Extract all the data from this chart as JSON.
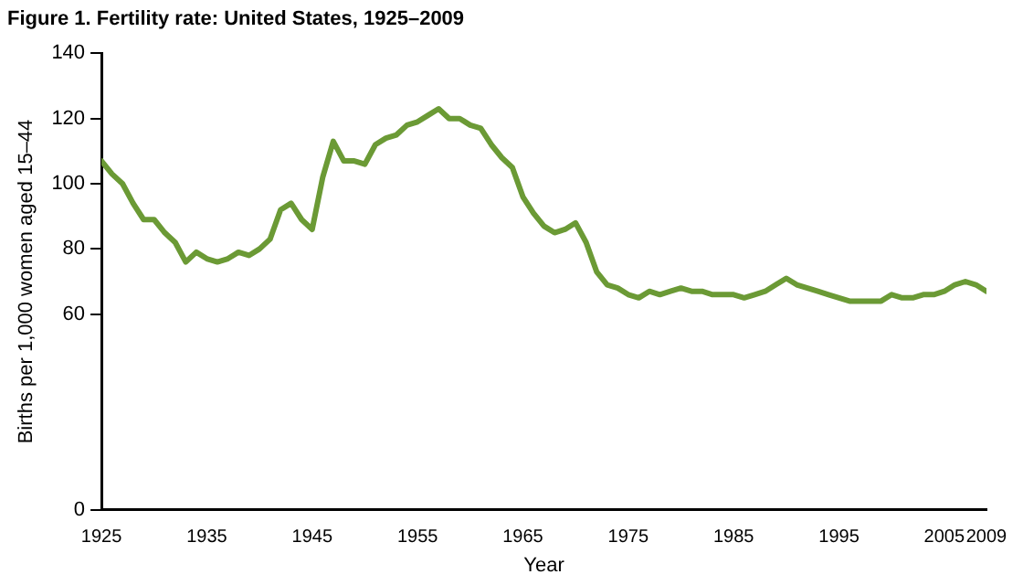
{
  "chart_data": {
    "type": "line",
    "title": "Figure 1. Fertility rate: United States, 1925–2009",
    "xlabel": "Year",
    "ylabel": "Births per 1,000 women aged 15–44",
    "x": [
      1925,
      1926,
      1927,
      1928,
      1929,
      1930,
      1931,
      1932,
      1933,
      1934,
      1935,
      1936,
      1937,
      1938,
      1939,
      1940,
      1941,
      1942,
      1943,
      1944,
      1945,
      1946,
      1947,
      1948,
      1949,
      1950,
      1951,
      1952,
      1953,
      1954,
      1955,
      1956,
      1957,
      1958,
      1959,
      1960,
      1961,
      1962,
      1963,
      1964,
      1965,
      1966,
      1967,
      1968,
      1969,
      1970,
      1971,
      1972,
      1973,
      1974,
      1975,
      1976,
      1977,
      1978,
      1979,
      1980,
      1981,
      1982,
      1983,
      1984,
      1985,
      1986,
      1987,
      1988,
      1989,
      1990,
      1991,
      1992,
      1993,
      1994,
      1995,
      1996,
      1997,
      1998,
      1999,
      2000,
      2001,
      2002,
      2003,
      2004,
      2005,
      2006,
      2007,
      2008,
      2009
    ],
    "series": [
      {
        "color": "#6b9a35",
        "values": [
          107,
          103,
          100,
          94,
          89,
          89,
          85,
          82,
          76,
          79,
          77,
          76,
          77,
          79,
          78,
          80,
          83,
          92,
          94,
          89,
          86,
          102,
          113,
          107,
          107,
          106,
          112,
          114,
          115,
          118,
          119,
          121,
          123,
          120,
          120,
          118,
          117,
          112,
          108,
          105,
          96,
          91,
          87,
          85,
          86,
          88,
          82,
          73,
          69,
          68,
          66,
          65,
          67,
          66,
          67,
          68,
          67,
          67,
          66,
          66,
          66,
          65,
          66,
          67,
          69,
          71,
          69,
          68,
          67,
          66,
          65,
          64,
          64,
          64,
          64,
          66,
          65,
          65,
          66,
          66,
          67,
          69,
          70,
          69,
          67
        ]
      }
    ],
    "xlim": [
      1925,
      2009
    ],
    "xticks": [
      1925,
      1935,
      1945,
      1955,
      1965,
      1975,
      1985,
      1995,
      2005,
      2009
    ],
    "ylim": [
      0,
      140
    ],
    "yticks": [
      0,
      60,
      80,
      100,
      120,
      140
    ],
    "grid": false,
    "legend": false,
    "marker": "none",
    "line_style": "solid"
  }
}
